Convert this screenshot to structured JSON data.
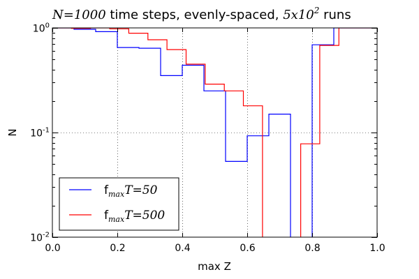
{
  "chart_data": {
    "type": "line",
    "step": "histogram",
    "title_parts": {
      "n_sym": "N",
      "n_eq": "=1000",
      "mid": " time steps, evenly-spaced, ",
      "runs_base": "5x10",
      "runs_exp": "2",
      "end": "  runs"
    },
    "xlabel": "max Z",
    "ylabel": "N",
    "xlim": [
      0.0,
      1.0
    ],
    "ylim": [
      0.01,
      1.0
    ],
    "yscale": "log",
    "grid": true,
    "legend_placement": "lower-left",
    "xticks": [
      0.0,
      0.2,
      0.4,
      0.6,
      0.8,
      1.0
    ],
    "xtick_labels": [
      "0.0",
      "0.2",
      "0.4",
      "0.6",
      "0.8",
      "1.0"
    ],
    "yticks": [
      {
        "value": 0.01,
        "base": "10",
        "exp": "-2"
      },
      {
        "value": 0.1,
        "base": "10",
        "exp": "-1"
      },
      {
        "value": 1.0,
        "base": "10",
        "exp": "0"
      }
    ],
    "series": [
      {
        "legend_prefix": "f",
        "legend_sub": "max",
        "legend_var": "T",
        "legend_value": "=50",
        "color": "#0000ff",
        "edges": [
          0.0,
          0.0667,
          0.1333,
          0.2,
          0.2667,
          0.3333,
          0.4,
          0.4667,
          0.5333,
          0.6,
          0.6667,
          0.7333,
          0.8,
          0.8667,
          0.9333,
          1.0
        ],
        "values": [
          1.0,
          0.97,
          0.92,
          0.65,
          0.64,
          0.35,
          0.44,
          0.25,
          0.053,
          0.093,
          0.15,
          0.0,
          0.69,
          1.0,
          1.0
        ]
      },
      {
        "legend_prefix": "f",
        "legend_sub": "max",
        "legend_var": "T",
        "legend_value": "=500",
        "color": "#ff0000",
        "edges": [
          0.0,
          0.0588,
          0.1176,
          0.1765,
          0.2353,
          0.2941,
          0.3529,
          0.4118,
          0.4706,
          0.5294,
          0.5882,
          0.6471,
          0.7059,
          0.7647,
          0.8235,
          0.8824,
          0.9412,
          1.0
        ],
        "values": [
          1.0,
          0.99,
          1.0,
          0.98,
          0.89,
          0.77,
          0.62,
          0.45,
          0.29,
          0.25,
          0.18,
          0.0,
          0.0,
          0.078,
          0.68,
          1.0,
          1.0
        ]
      }
    ]
  }
}
